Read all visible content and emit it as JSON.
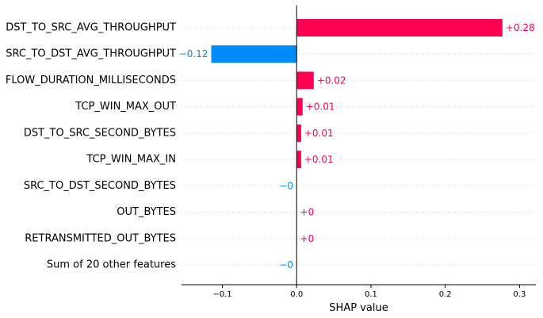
{
  "chart_data": {
    "type": "bar",
    "orientation": "horizontal",
    "title": "",
    "xlabel": "SHAP value",
    "ylabel": "",
    "xlim": [
      -0.155,
      0.322
    ],
    "xticks": [
      -0.1,
      0.0,
      0.1,
      0.2,
      0.3
    ],
    "xtick_labels": [
      "−0.1",
      "0.0",
      "0.1",
      "0.2",
      "0.3"
    ],
    "grid": "dotted horizontal lines per feature",
    "categories": [
      "DST_TO_SRC_AVG_THROUGHPUT",
      "SRC_TO_DST_AVG_THROUGHPUT",
      "FLOW_DURATION_MILLISECONDS",
      "TCP_WIN_MAX_OUT",
      "DST_TO_SRC_SECOND_BYTES",
      "TCP_WIN_MAX_IN",
      "SRC_TO_DST_SECOND_BYTES",
      "OUT_BYTES",
      "RETRANSMITTED_OUT_BYTES",
      "Sum of 20 other features"
    ],
    "values": [
      0.277,
      -0.115,
      0.023,
      0.008,
      0.006,
      0.006,
      -0.0003,
      0.0003,
      0.0003,
      -0.0003
    ],
    "value_labels": [
      "+0.28",
      "−0.12",
      "+0.02",
      "+0.01",
      "+0.01",
      "+0.01",
      "−0",
      "+0",
      "+0",
      "−0"
    ],
    "colors": {
      "positive": "#ff0051",
      "negative": "#008bfb"
    }
  }
}
